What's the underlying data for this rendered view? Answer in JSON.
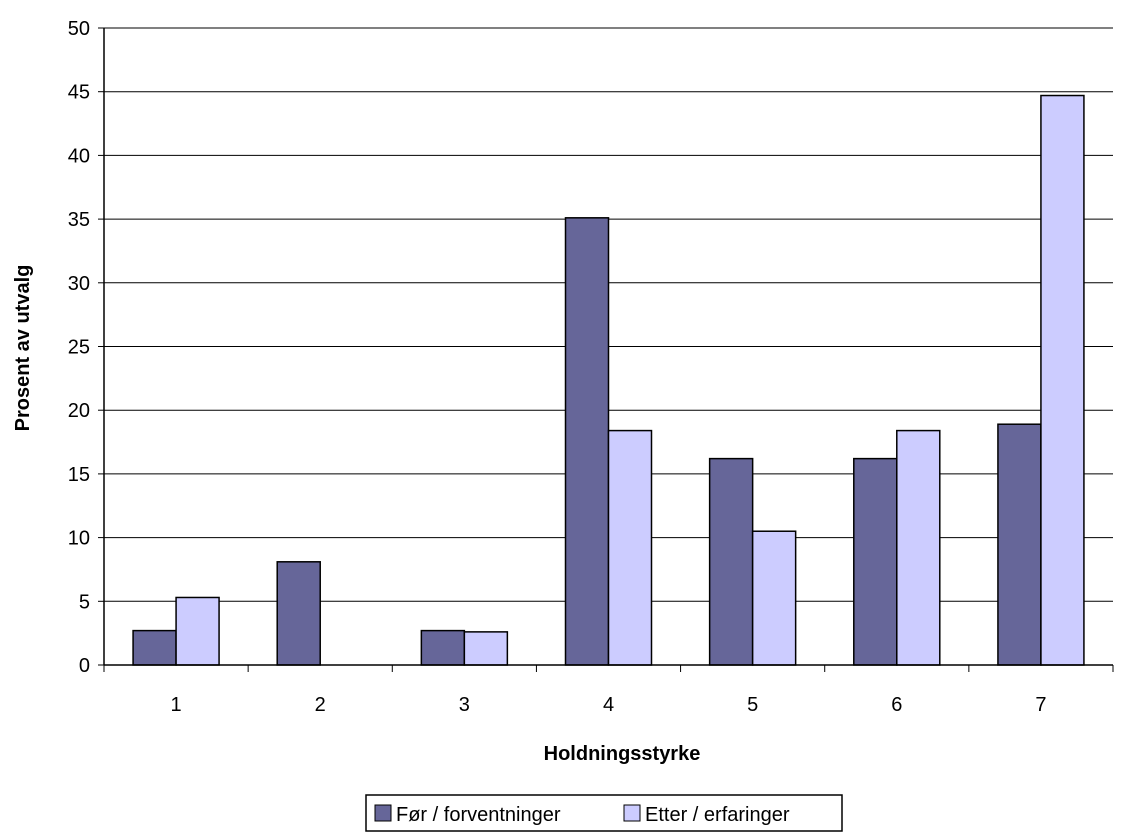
{
  "chart_data": {
    "type": "bar",
    "title": "",
    "xlabel": "Holdningsstyrke",
    "ylabel": "Prosent av utvalg",
    "categories": [
      "1",
      "2",
      "3",
      "4",
      "5",
      "6",
      "7"
    ],
    "ylim": [
      0,
      50
    ],
    "yticks": [
      "0",
      "5",
      "10",
      "15",
      "20",
      "25",
      "30",
      "35",
      "40",
      "45",
      "50"
    ],
    "grid": true,
    "legend_position": "bottom",
    "series": [
      {
        "name": "Før / forventninger",
        "color": "#666699",
        "values": [
          2.7,
          8.1,
          2.7,
          35.1,
          16.2,
          16.2,
          18.9
        ]
      },
      {
        "name": "Etter / erfaringer",
        "color": "#ccccff",
        "values": [
          5.3,
          0,
          2.6,
          18.4,
          10.5,
          18.4,
          44.7
        ]
      }
    ]
  }
}
